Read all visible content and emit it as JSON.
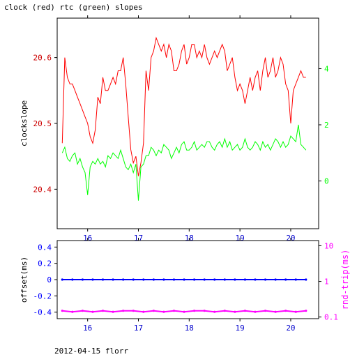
{
  "title": "clock (red) rtc (green) slopes",
  "footer": "2012-04-15 florr",
  "colors": {
    "axes": "#000000",
    "red": "#ff0000",
    "green": "#00ff00",
    "blue": "#0000ff",
    "magenta": "#ff00ff",
    "darkred": "#cc0000"
  },
  "chart_data": [
    {
      "type": "line",
      "title": "clock (red) rtc (green) slopes",
      "xlabel": "",
      "xlim": [
        15.4,
        20.55
      ],
      "x_ticks": [
        16,
        17,
        18,
        19,
        20
      ],
      "x_tick_labels": [
        "16",
        "17",
        "18",
        "19",
        "20"
      ],
      "y_left": {
        "label": "clockslope",
        "lim": [
          20.34,
          20.66
        ],
        "ticks": [
          20.4,
          20.5,
          20.6
        ],
        "tick_labels": [
          "20.4",
          "20.5",
          "20.6"
        ]
      },
      "y_right": {
        "label": "",
        "lim": [
          -1.7,
          5.8
        ],
        "ticks": [
          0,
          2,
          4
        ],
        "tick_labels": [
          "0",
          "2",
          "4"
        ]
      },
      "series": [
        {
          "name": "clock",
          "axis": "left",
          "color": "#ff0000",
          "x": [
            15.5,
            15.55,
            15.6,
            15.65,
            15.7,
            15.75,
            15.8,
            15.85,
            15.9,
            15.95,
            16.0,
            16.05,
            16.1,
            16.15,
            16.2,
            16.25,
            16.3,
            16.35,
            16.4,
            16.45,
            16.5,
            16.55,
            16.6,
            16.65,
            16.7,
            16.75,
            16.8,
            16.85,
            16.9,
            16.95,
            17.0,
            17.05,
            17.1,
            17.15,
            17.2,
            17.25,
            17.3,
            17.35,
            17.4,
            17.45,
            17.5,
            17.55,
            17.6,
            17.65,
            17.7,
            17.75,
            17.8,
            17.85,
            17.9,
            17.95,
            18.0,
            18.05,
            18.1,
            18.15,
            18.2,
            18.25,
            18.3,
            18.35,
            18.4,
            18.45,
            18.5,
            18.55,
            18.6,
            18.65,
            18.7,
            18.75,
            18.8,
            18.85,
            18.9,
            18.95,
            19.0,
            19.05,
            19.1,
            19.15,
            19.2,
            19.25,
            19.3,
            19.35,
            19.4,
            19.45,
            19.5,
            19.55,
            19.6,
            19.65,
            19.7,
            19.75,
            19.8,
            19.85,
            19.9,
            19.95,
            20.0,
            20.05,
            20.1,
            20.15,
            20.2,
            20.25,
            20.3
          ],
          "y": [
            20.47,
            20.6,
            20.57,
            20.56,
            20.56,
            20.55,
            20.54,
            20.53,
            20.52,
            20.51,
            20.5,
            20.48,
            20.47,
            20.49,
            20.54,
            20.53,
            20.57,
            20.55,
            20.55,
            20.56,
            20.57,
            20.56,
            20.58,
            20.58,
            20.6,
            20.56,
            20.51,
            20.46,
            20.44,
            20.45,
            20.42,
            20.44,
            20.47,
            20.58,
            20.55,
            20.6,
            20.61,
            20.63,
            20.62,
            20.61,
            20.62,
            20.6,
            20.62,
            20.61,
            20.58,
            20.58,
            20.59,
            20.61,
            20.62,
            20.59,
            20.6,
            20.62,
            20.62,
            20.6,
            20.61,
            20.6,
            20.62,
            20.6,
            20.59,
            20.6,
            20.61,
            20.6,
            20.61,
            20.62,
            20.61,
            20.58,
            20.59,
            20.6,
            20.57,
            20.55,
            20.56,
            20.55,
            20.53,
            20.55,
            20.57,
            20.55,
            20.57,
            20.58,
            20.55,
            20.58,
            20.6,
            20.57,
            20.58,
            20.6,
            20.57,
            20.58,
            20.6,
            20.59,
            20.56,
            20.55,
            20.5,
            20.55,
            20.56,
            20.57,
            20.58,
            20.57,
            20.57
          ]
        },
        {
          "name": "rtc",
          "axis": "right",
          "color": "#00ff00",
          "x": [
            15.5,
            15.55,
            15.6,
            15.65,
            15.7,
            15.75,
            15.8,
            15.85,
            15.9,
            15.95,
            16.0,
            16.05,
            16.1,
            16.15,
            16.2,
            16.25,
            16.3,
            16.35,
            16.4,
            16.45,
            16.5,
            16.55,
            16.6,
            16.65,
            16.7,
            16.75,
            16.8,
            16.85,
            16.9,
            16.95,
            17.0,
            17.05,
            17.1,
            17.15,
            17.2,
            17.25,
            17.3,
            17.35,
            17.4,
            17.45,
            17.5,
            17.55,
            17.6,
            17.65,
            17.7,
            17.75,
            17.8,
            17.85,
            17.9,
            17.95,
            18.0,
            18.05,
            18.1,
            18.15,
            18.2,
            18.25,
            18.3,
            18.35,
            18.4,
            18.45,
            18.5,
            18.55,
            18.6,
            18.65,
            18.7,
            18.75,
            18.8,
            18.85,
            18.9,
            18.95,
            19.0,
            19.05,
            19.1,
            19.15,
            19.2,
            19.25,
            19.3,
            19.35,
            19.4,
            19.45,
            19.5,
            19.55,
            19.6,
            19.65,
            19.7,
            19.75,
            19.8,
            19.85,
            19.9,
            19.95,
            20.0,
            20.05,
            20.1,
            20.15,
            20.2,
            20.25,
            20.3
          ],
          "y": [
            1.0,
            1.2,
            0.8,
            0.7,
            0.9,
            1.0,
            0.6,
            0.8,
            0.5,
            0.3,
            -0.5,
            0.5,
            0.7,
            0.6,
            0.8,
            0.6,
            0.7,
            0.5,
            0.9,
            0.8,
            1.0,
            0.9,
            0.8,
            1.1,
            0.8,
            0.5,
            0.4,
            0.6,
            0.3,
            0.6,
            -0.7,
            0.5,
            0.6,
            0.9,
            0.9,
            1.2,
            1.1,
            0.9,
            1.1,
            1.0,
            1.3,
            1.2,
            1.1,
            0.8,
            1.0,
            1.2,
            1.0,
            1.3,
            1.4,
            1.1,
            1.1,
            1.2,
            1.4,
            1.1,
            1.2,
            1.3,
            1.2,
            1.4,
            1.4,
            1.2,
            1.1,
            1.3,
            1.4,
            1.2,
            1.5,
            1.2,
            1.4,
            1.1,
            1.2,
            1.3,
            1.1,
            1.2,
            1.5,
            1.2,
            1.1,
            1.2,
            1.4,
            1.3,
            1.1,
            1.4,
            1.2,
            1.3,
            1.1,
            1.3,
            1.5,
            1.4,
            1.2,
            1.4,
            1.2,
            1.3,
            1.6,
            1.5,
            1.4,
            2.0,
            1.3,
            1.2,
            1.1
          ]
        }
      ]
    },
    {
      "type": "scatter",
      "title": "",
      "xlabel": "",
      "xlim": [
        15.4,
        20.55
      ],
      "x_ticks": [
        16,
        17,
        18,
        19,
        20
      ],
      "x_tick_labels": [
        "16",
        "17",
        "18",
        "19",
        "20"
      ],
      "y_left": {
        "label": "offset(ms)",
        "lim": [
          -0.48,
          0.48
        ],
        "ticks": [
          -0.4,
          -0.2,
          0,
          0.2,
          0.4
        ],
        "tick_labels": [
          "-0.4",
          "-0.2",
          "0",
          "0.2",
          "0.4"
        ]
      },
      "y_right": {
        "label": "rnd-trip(ms)",
        "scale": "log",
        "lim": [
          0.09,
          14
        ],
        "ticks": [
          0.1,
          1,
          10
        ],
        "tick_labels": [
          "0.1",
          "1",
          "10"
        ]
      },
      "series": [
        {
          "name": "offset",
          "axis": "left",
          "color": "#0000ff",
          "x": [
            15.5,
            15.7,
            15.9,
            16.1,
            16.3,
            16.5,
            16.7,
            16.9,
            17.1,
            17.3,
            17.5,
            17.7,
            17.9,
            18.1,
            18.3,
            18.5,
            18.7,
            18.9,
            19.1,
            19.3,
            19.5,
            19.7,
            19.9,
            20.1,
            20.3
          ],
          "y": [
            0.0,
            0.0,
            0.0,
            0.0,
            0.0,
            0.0,
            0.0,
            0.0,
            0.0,
            0.0,
            0.0,
            0.0,
            0.0,
            0.0,
            0.0,
            0.0,
            0.0,
            0.0,
            0.0,
            0.0,
            0.0,
            0.0,
            0.0,
            0.0,
            0.0
          ]
        },
        {
          "name": "rnd-trip",
          "axis": "right",
          "color": "#ff00ff",
          "x": [
            15.5,
            15.7,
            15.9,
            16.1,
            16.3,
            16.5,
            16.7,
            16.9,
            17.1,
            17.3,
            17.5,
            17.7,
            17.9,
            18.1,
            18.3,
            18.5,
            18.7,
            18.9,
            19.1,
            19.3,
            19.5,
            19.7,
            19.9,
            20.1,
            20.3
          ],
          "y": [
            0.15,
            0.14,
            0.15,
            0.14,
            0.15,
            0.14,
            0.15,
            0.15,
            0.14,
            0.15,
            0.14,
            0.15,
            0.14,
            0.15,
            0.15,
            0.14,
            0.15,
            0.14,
            0.15,
            0.14,
            0.15,
            0.14,
            0.15,
            0.14,
            0.15
          ]
        }
      ]
    }
  ]
}
